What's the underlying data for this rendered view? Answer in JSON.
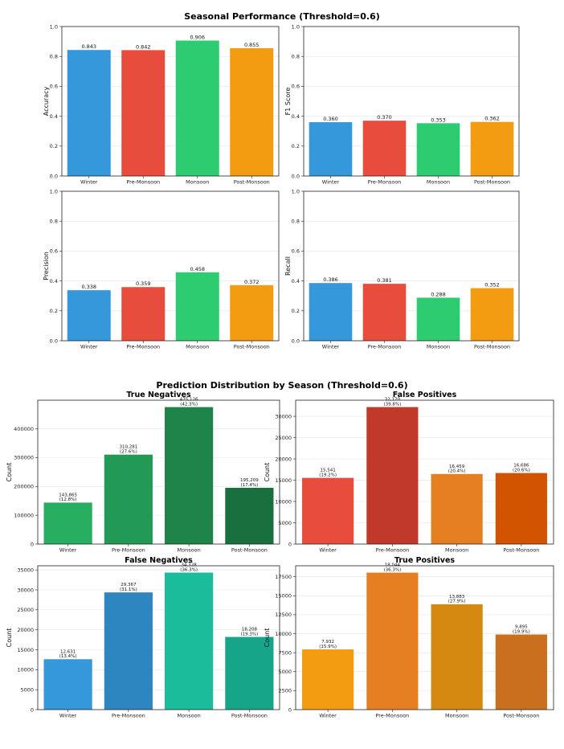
{
  "figure": {
    "title_top": "Seasonal Performance (Threshold=0.6)",
    "title_bottom": "Prediction Distribution by Season (Threshold=0.6)"
  },
  "chart_data": [
    {
      "id": "accuracy",
      "type": "bar",
      "title": "",
      "ylabel": "Accuracy",
      "categories": [
        "Winter",
        "Pre-Monsoon",
        "Monsoon",
        "Post-Monsoon"
      ],
      "values": [
        0.843,
        0.842,
        0.906,
        0.855
      ],
      "labels": [
        "0.843",
        "0.842",
        "0.906",
        "0.855"
      ],
      "colors": [
        "#3498db",
        "#e74c3c",
        "#2ecc71",
        "#f39c12"
      ],
      "ylim": [
        0,
        1.0
      ],
      "yticks": [
        0.0,
        0.2,
        0.4,
        0.6,
        0.8,
        1.0
      ],
      "ytick_fmt": "dec1"
    },
    {
      "id": "f1",
      "type": "bar",
      "title": "",
      "ylabel": "F1 Score",
      "categories": [
        "Winter",
        "Pre-Monsoon",
        "Monsoon",
        "Post-Monsoon"
      ],
      "values": [
        0.36,
        0.37,
        0.353,
        0.362
      ],
      "labels": [
        "0.360",
        "0.370",
        "0.353",
        "0.362"
      ],
      "colors": [
        "#3498db",
        "#e74c3c",
        "#2ecc71",
        "#f39c12"
      ],
      "ylim": [
        0,
        1.0
      ],
      "yticks": [
        0.0,
        0.2,
        0.4,
        0.6,
        0.8,
        1.0
      ],
      "ytick_fmt": "dec1"
    },
    {
      "id": "precision",
      "type": "bar",
      "title": "",
      "ylabel": "Precision",
      "categories": [
        "Winter",
        "Pre-Monsoon",
        "Monsoon",
        "Post-Monsoon"
      ],
      "values": [
        0.338,
        0.359,
        0.458,
        0.372
      ],
      "labels": [
        "0.338",
        "0.359",
        "0.458",
        "0.372"
      ],
      "colors": [
        "#3498db",
        "#e74c3c",
        "#2ecc71",
        "#f39c12"
      ],
      "ylim": [
        0,
        1.0
      ],
      "yticks": [
        0.0,
        0.2,
        0.4,
        0.6,
        0.8,
        1.0
      ],
      "ytick_fmt": "dec1"
    },
    {
      "id": "recall",
      "type": "bar",
      "title": "",
      "ylabel": "Recall",
      "categories": [
        "Winter",
        "Pre-Monsoon",
        "Monsoon",
        "Post-Monsoon"
      ],
      "values": [
        0.386,
        0.381,
        0.288,
        0.352
      ],
      "labels": [
        "0.386",
        "0.381",
        "0.288",
        "0.352"
      ],
      "colors": [
        "#3498db",
        "#e74c3c",
        "#2ecc71",
        "#f39c12"
      ],
      "ylim": [
        0,
        1.0
      ],
      "yticks": [
        0.0,
        0.2,
        0.4,
        0.6,
        0.8,
        1.0
      ],
      "ytick_fmt": "dec1"
    },
    {
      "id": "tn",
      "type": "bar",
      "title": "True Negatives",
      "ylabel": "Count",
      "categories": [
        "Winter",
        "Pre-Monsoon",
        "Monsoon",
        "Post-Monsoon"
      ],
      "values": [
        143865,
        310281,
        475126,
        195209
      ],
      "labels": [
        "143,865\n(12.8%)",
        "310,281\n(27.6%)",
        "475,126\n(42.3%)",
        "195,209\n(17.4%)"
      ],
      "colors": [
        "#27ae60",
        "#229954",
        "#1e8449",
        "#196f3d"
      ],
      "ylim": [
        0,
        499000
      ],
      "yticks": [
        0,
        100000,
        200000,
        300000,
        400000
      ],
      "ytick_fmt": "int"
    },
    {
      "id": "fp",
      "type": "bar",
      "title": "False Positives",
      "ylabel": "Count",
      "categories": [
        "Winter",
        "Pre-Monsoon",
        "Monsoon",
        "Post-Monsoon"
      ],
      "values": [
        15541,
        32170,
        16459,
        16686
      ],
      "labels": [
        "15,541\n(19.2%)",
        "32,170\n(39.8%)",
        "16,459\n(20.4%)",
        "16,686\n(20.6%)"
      ],
      "colors": [
        "#e74c3c",
        "#c0392b",
        "#e67e22",
        "#d35400"
      ],
      "ylim": [
        0,
        33780
      ],
      "yticks": [
        0,
        5000,
        10000,
        15000,
        20000,
        25000,
        30000
      ],
      "ytick_fmt": "int"
    },
    {
      "id": "fn",
      "type": "bar",
      "title": "False Negatives",
      "ylabel": "Count",
      "categories": [
        "Winter",
        "Pre-Monsoon",
        "Monsoon",
        "Post-Monsoon"
      ],
      "values": [
        12631,
        29367,
        34328,
        18208
      ],
      "labels": [
        "12,631\n(13.4%)",
        "29,367\n(31.1%)",
        "34,328\n(36.3%)",
        "18,208\n(19.3%)"
      ],
      "colors": [
        "#3498db",
        "#2e86c1",
        "#1abc9c",
        "#17a589"
      ],
      "ylim": [
        0,
        36040
      ],
      "yticks": [
        0,
        5000,
        10000,
        15000,
        20000,
        25000,
        30000,
        35000
      ],
      "ytick_fmt": "int"
    },
    {
      "id": "tp",
      "type": "bar",
      "title": "True Positives",
      "ylabel": "Count",
      "categories": [
        "Winter",
        "Pre-Monsoon",
        "Monsoon",
        "Post-Monsoon"
      ],
      "values": [
        7932,
        18044,
        13883,
        9895
      ],
      "labels": [
        "7,932\n(15.9%)",
        "18,044\n(36.3%)",
        "13,883\n(27.9%)",
        "9,895\n(19.9%)"
      ],
      "colors": [
        "#f39c12",
        "#e67e22",
        "#d68910",
        "#ca6f1e"
      ],
      "ylim": [
        0,
        18950
      ],
      "yticks": [
        0,
        2500,
        5000,
        7500,
        10000,
        12500,
        15000,
        17500
      ],
      "ytick_fmt": "int"
    }
  ]
}
